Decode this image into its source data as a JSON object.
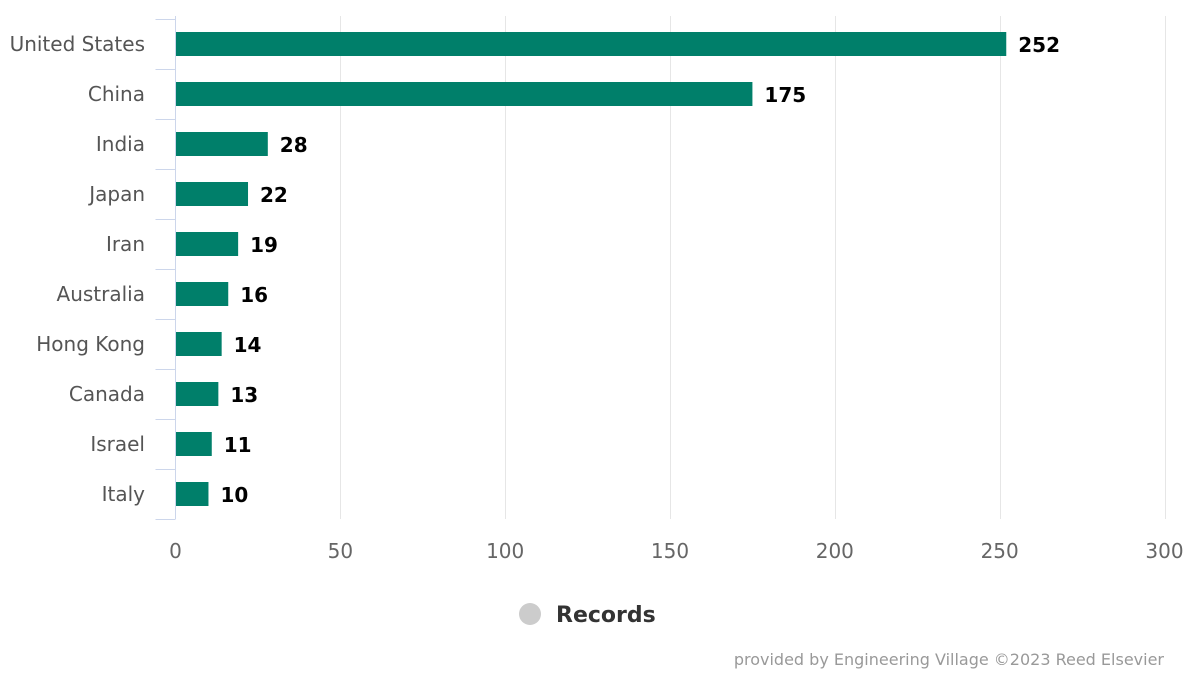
{
  "chart_data": {
    "type": "bar",
    "orientation": "horizontal",
    "categories": [
      "United States",
      "China",
      "India",
      "Japan",
      "Iran",
      "Australia",
      "Hong Kong",
      "Canada",
      "Israel",
      "Italy"
    ],
    "series": [
      {
        "name": "Records",
        "values": [
          252,
          175,
          28,
          22,
          19,
          16,
          14,
          13,
          11,
          10
        ]
      }
    ],
    "xlim": [
      0,
      300
    ],
    "xticks": [
      0,
      50,
      100,
      150,
      200,
      250,
      300
    ],
    "grid": true,
    "legend": "bottom-center",
    "data_labels": true
  },
  "colors": {
    "bar": "#007f6a",
    "legend_marker": "#cccccc",
    "grid": "#e6e6e6",
    "axis": "#ccd6eb"
  },
  "credits": "provided by Engineering Village ©2023 Reed Elsevier"
}
